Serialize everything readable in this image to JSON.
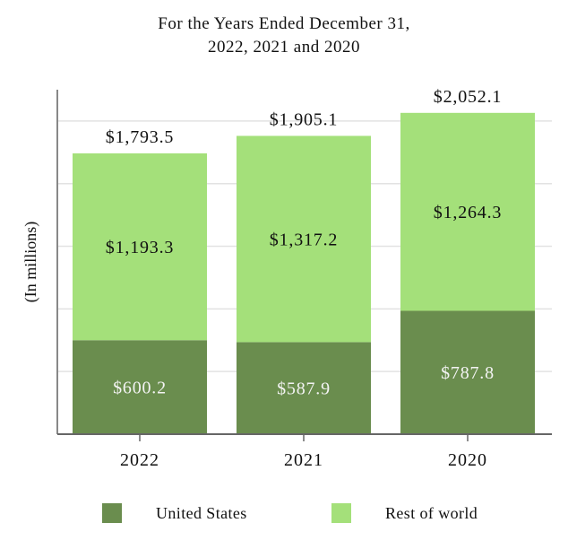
{
  "chart_data": {
    "type": "bar",
    "stacked": true,
    "title_lines": [
      "For the Years Ended December 31,",
      "2022, 2021 and 2020"
    ],
    "ylabel": "(In millions)",
    "categories": [
      "2022",
      "2021",
      "2020"
    ],
    "series": [
      {
        "name": "United States",
        "values": [
          600.2,
          587.9,
          787.8
        ],
        "labels": [
          "$600.2",
          "$587.9",
          "$787.8"
        ],
        "color": "#6a8d4e",
        "label_color": "#f3f3f3"
      },
      {
        "name": "Rest of world",
        "values": [
          1193.3,
          1317.2,
          1264.3
        ],
        "labels": [
          "$1,193.3",
          "$1,317.2",
          "$1,264.3"
        ],
        "color": "#a4e07a",
        "label_color": "#111111"
      }
    ],
    "totals": [
      1793.5,
      1905.1,
      2052.1
    ],
    "total_labels": [
      "$1,793.5",
      "$1,905.1",
      "$2,052.1"
    ],
    "ylim": [
      0,
      2200
    ],
    "grid": true,
    "legend_position": "bottom"
  }
}
